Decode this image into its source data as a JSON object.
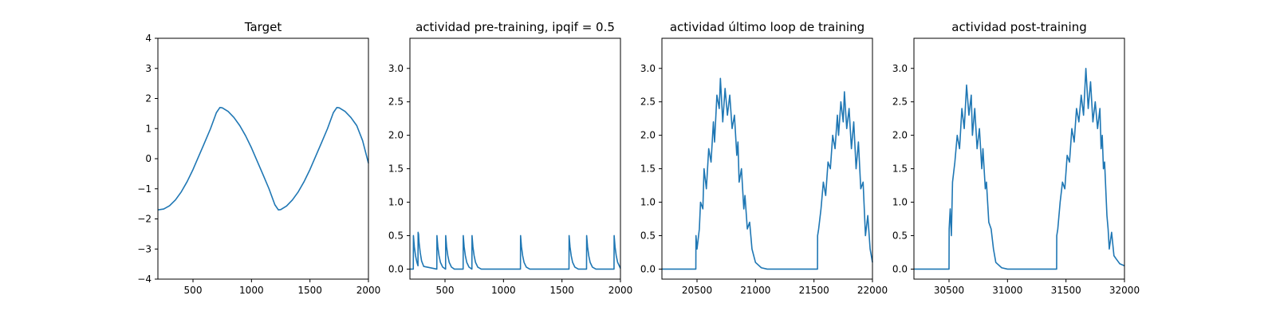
{
  "chart_data": [
    {
      "type": "line",
      "title": "Target",
      "xlabel": "",
      "ylabel": "",
      "xlim": [
        200,
        2000
      ],
      "ylim": [
        -4,
        4
      ],
      "xticks": [
        500,
        1000,
        1500,
        2000
      ],
      "yticks": [
        -4,
        -3,
        -2,
        -1,
        0,
        1,
        2,
        3,
        4
      ],
      "grid": false,
      "color": "#1f77b4",
      "series": [
        {
          "x": [
            200,
            250,
            300,
            350,
            400,
            450,
            500,
            550,
            600,
            650,
            700,
            730,
            750,
            800,
            850,
            900,
            950,
            1000,
            1050,
            1100,
            1150,
            1200,
            1230,
            1250,
            1300,
            1350,
            1400,
            1450,
            1500,
            1550,
            1600,
            1650,
            1700,
            1730,
            1750,
            1800,
            1850,
            1900,
            1950,
            2000
          ],
          "y": [
            -1.7,
            -1.67,
            -1.56,
            -1.37,
            -1.1,
            -0.76,
            -0.36,
            0.09,
            0.54,
            1.0,
            1.53,
            1.7,
            1.69,
            1.57,
            1.37,
            1.1,
            0.76,
            0.36,
            -0.09,
            -0.54,
            -1.0,
            -1.53,
            -1.7,
            -1.69,
            -1.57,
            -1.37,
            -1.1,
            -0.76,
            -0.36,
            0.09,
            0.54,
            1.0,
            1.53,
            1.7,
            1.69,
            1.57,
            1.37,
            1.1,
            0.6,
            -0.15
          ]
        }
      ]
    },
    {
      "type": "line",
      "title": "actividad pre-training, ipqif = 0.5",
      "xlabel": "",
      "ylabel": "",
      "xlim": [
        200,
        2000
      ],
      "ylim": [
        -0.15,
        3.45
      ],
      "xticks": [
        500,
        1000,
        1500,
        2000
      ],
      "yticks": [
        0.0,
        0.5,
        1.0,
        1.5,
        2.0,
        2.5,
        3.0
      ],
      "grid": false,
      "color": "#1f77b4",
      "series": [
        {
          "x": [
            200,
            229,
            230,
            238,
            248,
            260,
            269,
            270,
            274,
            278,
            288,
            300,
            318,
            430,
            431,
            439,
            449,
            461,
            480,
            505,
            506,
            514,
            524,
            536,
            555,
            580,
            655,
            656,
            664,
            674,
            686,
            705,
            730,
            731,
            739,
            749,
            761,
            780,
            810,
            1145,
            1146,
            1154,
            1164,
            1176,
            1195,
            1225,
            1560,
            1561,
            1569,
            1579,
            1591,
            1610,
            1640,
            1710,
            1711,
            1719,
            1729,
            1741,
            1760,
            1790,
            1945,
            1946,
            1954,
            1964,
            1976,
            1995,
            2000
          ],
          "y": [
            0.0,
            0.0,
            0.5,
            0.33,
            0.2,
            0.1,
            0.05,
            0.55,
            0.52,
            0.4,
            0.25,
            0.12,
            0.04,
            0.0,
            0.5,
            0.33,
            0.2,
            0.1,
            0.03,
            0.0,
            0.5,
            0.33,
            0.2,
            0.1,
            0.03,
            0.0,
            0.0,
            0.5,
            0.33,
            0.2,
            0.1,
            0.03,
            0.0,
            0.5,
            0.33,
            0.2,
            0.1,
            0.03,
            0.0,
            0.0,
            0.5,
            0.33,
            0.2,
            0.1,
            0.03,
            0.0,
            0.0,
            0.5,
            0.33,
            0.2,
            0.1,
            0.03,
            0.0,
            0.0,
            0.5,
            0.33,
            0.2,
            0.1,
            0.03,
            0.0,
            0.0,
            0.5,
            0.33,
            0.2,
            0.1,
            0.03,
            0.01
          ]
        }
      ]
    },
    {
      "type": "line",
      "title": "actividad último loop de training",
      "xlabel": "",
      "ylabel": "",
      "xlim": [
        20200,
        22000
      ],
      "ylim": [
        -0.15,
        3.45
      ],
      "xticks": [
        20500,
        21000,
        21500,
        22000
      ],
      "yticks": [
        0.0,
        0.5,
        1.0,
        1.5,
        2.0,
        2.5,
        3.0
      ],
      "grid": false,
      "color": "#1f77b4",
      "series": [
        {
          "x": [
            20200,
            20490,
            20491,
            20500,
            20520,
            20530,
            20550,
            20560,
            20580,
            20600,
            20620,
            20640,
            20650,
            20670,
            20690,
            20700,
            20720,
            20740,
            20760,
            20780,
            20800,
            20820,
            20840,
            20850,
            20860,
            20880,
            20900,
            20910,
            20930,
            20950,
            20970,
            21000,
            21050,
            21100,
            21150,
            21200,
            21250,
            21300,
            21350,
            21400,
            21450,
            21500,
            21530,
            21531,
            21540,
            21560,
            21580,
            21600,
            21620,
            21640,
            21660,
            21680,
            21700,
            21710,
            21730,
            21750,
            21760,
            21780,
            21800,
            21820,
            21840,
            21860,
            21880,
            21900,
            21920,
            21940,
            21960,
            21980,
            22000
          ],
          "y": [
            0.0,
            0.0,
            0.5,
            0.3,
            0.6,
            1.0,
            0.9,
            1.5,
            1.2,
            1.8,
            1.6,
            2.2,
            1.9,
            2.6,
            2.4,
            2.85,
            2.2,
            2.7,
            2.3,
            2.6,
            2.1,
            2.3,
            1.7,
            1.9,
            1.3,
            1.5,
            0.9,
            1.1,
            0.6,
            0.7,
            0.3,
            0.1,
            0.02,
            0.0,
            0.0,
            0.0,
            0.0,
            0.0,
            0.0,
            0.0,
            0.0,
            0.0,
            0.0,
            0.5,
            0.6,
            0.9,
            1.3,
            1.1,
            1.6,
            1.5,
            2.0,
            1.8,
            2.3,
            2.0,
            2.5,
            2.2,
            2.65,
            2.1,
            2.4,
            1.8,
            2.2,
            1.5,
            1.9,
            1.2,
            1.3,
            0.5,
            0.8,
            0.3,
            0.1
          ]
        }
      ]
    },
    {
      "type": "line",
      "title": "actividad post-training",
      "xlabel": "",
      "ylabel": "",
      "xlim": [
        30200,
        32000
      ],
      "ylim": [
        -0.15,
        3.45
      ],
      "xticks": [
        30500,
        31000,
        31500,
        32000
      ],
      "yticks": [
        0.0,
        0.5,
        1.0,
        1.5,
        2.0,
        2.5,
        3.0
      ],
      "grid": false,
      "color": "#1f77b4",
      "series": [
        {
          "x": [
            30200,
            30500,
            30501,
            30510,
            30520,
            30530,
            30550,
            30570,
            30590,
            30610,
            30630,
            30650,
            30670,
            30690,
            30700,
            30720,
            30740,
            30760,
            30780,
            30790,
            30810,
            30820,
            30840,
            30860,
            30880,
            30900,
            30950,
            31000,
            31050,
            31100,
            31150,
            31200,
            31250,
            31300,
            31350,
            31400,
            31420,
            31421,
            31430,
            31450,
            31470,
            31490,
            31510,
            31530,
            31550,
            31570,
            31590,
            31610,
            31630,
            31650,
            31670,
            31690,
            31710,
            31730,
            31750,
            31770,
            31790,
            31800,
            31810,
            31820,
            31830,
            31850,
            31860,
            31870,
            31890,
            31910,
            31930,
            31960,
            32000
          ],
          "y": [
            0.0,
            0.0,
            0.6,
            0.9,
            0.5,
            1.3,
            1.6,
            2.0,
            1.8,
            2.4,
            2.1,
            2.75,
            2.3,
            2.6,
            2.0,
            2.4,
            1.8,
            2.1,
            1.5,
            1.8,
            1.2,
            1.3,
            0.7,
            0.6,
            0.3,
            0.1,
            0.02,
            0.0,
            0.0,
            0.0,
            0.0,
            0.0,
            0.0,
            0.0,
            0.0,
            0.0,
            0.0,
            0.5,
            0.6,
            1.0,
            1.3,
            1.2,
            1.7,
            1.6,
            2.1,
            1.9,
            2.4,
            2.2,
            2.6,
            2.3,
            3.0,
            2.4,
            2.8,
            2.2,
            2.5,
            2.1,
            2.4,
            1.8,
            2.0,
            1.5,
            1.6,
            0.8,
            0.6,
            0.3,
            0.55,
            0.2,
            0.15,
            0.08,
            0.05
          ]
        }
      ]
    }
  ]
}
